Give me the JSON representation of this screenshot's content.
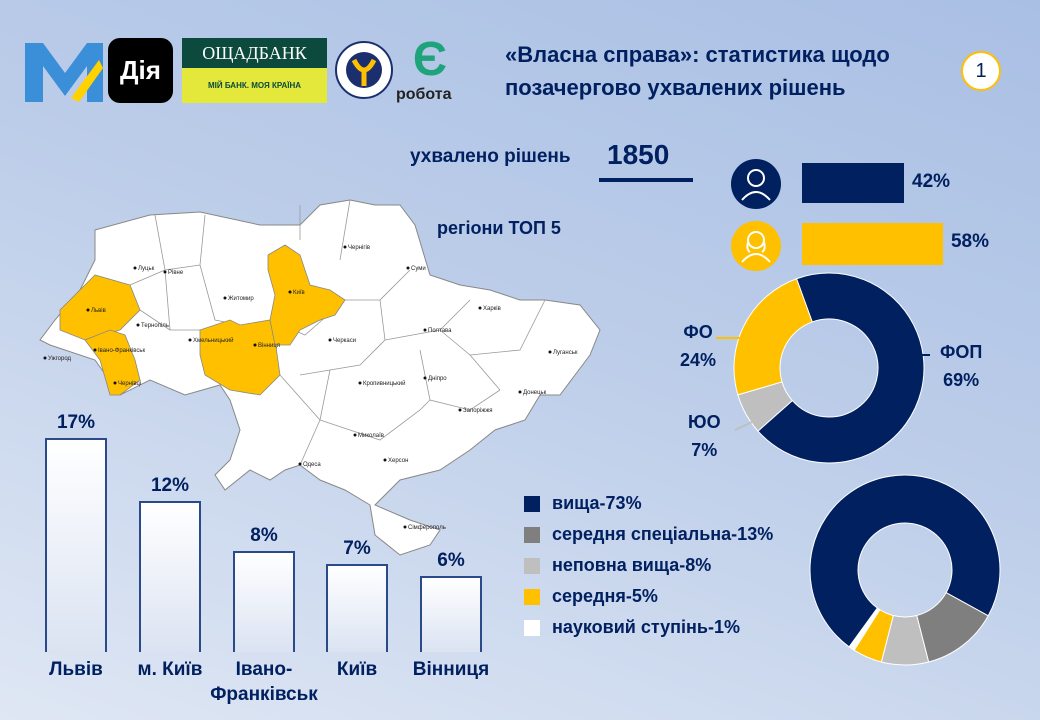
{
  "logos": {
    "dia": "Дія",
    "oschad_top": "ОЩАДБАНК",
    "oschad_bottom": "МІЙ БАНК. МОЯ КРАЇНА",
    "dszu": "ДЕРЖАВНА СЛУЖБА ЗАЙНЯТОСТІ",
    "erobota_letter": "Є",
    "erobota": "робота"
  },
  "title": "«Власна справа»: статистика щодо позачергово ухвалених рішень",
  "page_number": "1",
  "approved": {
    "label": "ухвалено рішень",
    "value": "1850"
  },
  "top5_label": "регіони ТОП 5",
  "colors": {
    "navy": "#002060",
    "yellow": "#ffc000",
    "dark_gray": "#7f7f7f",
    "light_gray": "#bfbfbf",
    "white": "#ffffff"
  },
  "gender": [
    {
      "icon": "male-person-icon",
      "value": 42,
      "label": "42%",
      "color": "#002060"
    },
    {
      "icon": "female-person-icon",
      "value": 58,
      "label": "58%",
      "color": "#ffc000"
    }
  ],
  "map_cities": [
    "Луцьк",
    "Рівне",
    "Житомир",
    "Київ",
    "Чернігів",
    "Суми",
    "Харків",
    "Полтава",
    "Черкаси",
    "Вінниця",
    "Хмельницький",
    "Тернопіль",
    "Львів",
    "Івано-Франківськ",
    "Ужгород",
    "Чернівці",
    "Кропивницький",
    "Дніпро",
    "Луганськ",
    "Донецьк",
    "Запоріжжя",
    "Миколаїв",
    "Херсон",
    "Одеса",
    "Сімферополь"
  ],
  "chart_data": [
    {
      "type": "bar",
      "categories": [
        "Львів",
        "м. Київ",
        "Івано-Франківськ",
        "Київ",
        "Вінниця"
      ],
      "values": [
        17,
        12,
        8,
        7,
        6
      ],
      "labels": [
        "17%",
        "12%",
        "8%",
        "7%",
        "6%"
      ],
      "category_labels": [
        "Львів",
        "м. Київ",
        "Івано-\nФранківськ",
        "Київ",
        "Вінниця"
      ]
    },
    {
      "type": "pie",
      "slices": [
        {
          "name": "ФОП",
          "value": 69,
          "label": "69%",
          "color": "#002060"
        },
        {
          "name": "ЮО",
          "value": 7,
          "label": "7%",
          "color": "#bfbfbf"
        },
        {
          "name": "ФО",
          "value": 24,
          "label": "24%",
          "color": "#ffc000"
        }
      ]
    },
    {
      "type": "pie",
      "slices": [
        {
          "name": "вища-73%",
          "value": 73,
          "color": "#002060"
        },
        {
          "name": "середня спеціальна-13%",
          "value": 13,
          "color": "#7f7f7f"
        },
        {
          "name": "неповна вища-8%",
          "value": 8,
          "color": "#bfbfbf"
        },
        {
          "name": "середня-5%",
          "value": 5,
          "color": "#ffc000"
        },
        {
          "name": "науковий ступінь-1%",
          "value": 1,
          "color": "#ffffff"
        }
      ]
    }
  ]
}
